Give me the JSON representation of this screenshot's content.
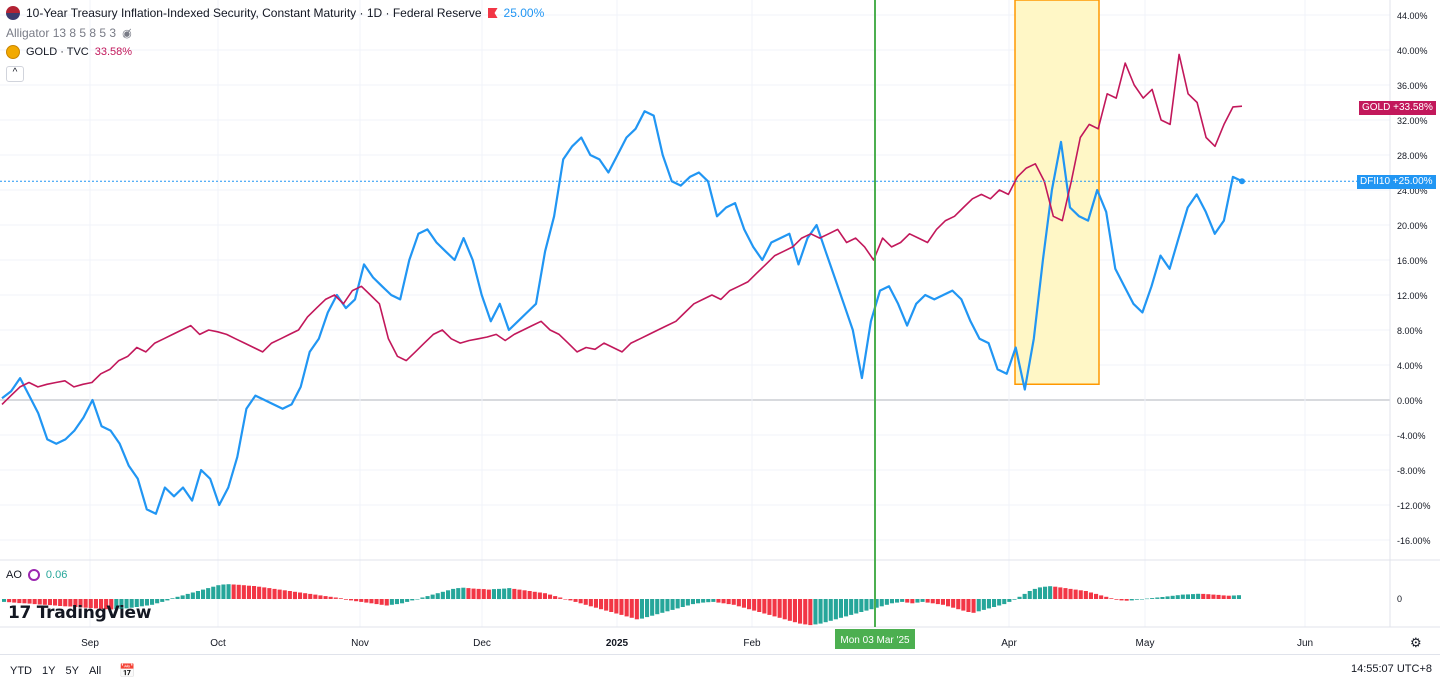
{
  "legend": {
    "main_title": "10-Year Treasury Inflation-Indexed Security, Constant Maturity · 1D · Federal Reserve",
    "main_value": "25.00%",
    "alligator": "Alligator 13 8 5 8 5 3",
    "gold_title": "GOLD · TVC",
    "gold_value": "33.58%",
    "collapse": "^"
  },
  "ao": {
    "label": "AO",
    "value": "0.06"
  },
  "logo": "TradingView",
  "price_tags": {
    "gold": "+33.58%",
    "gold_name": "GOLD",
    "dfii": "+25.00%",
    "dfii_name": "DFII10"
  },
  "range_buttons": [
    "YTD",
    "1Y",
    "5Y",
    "All"
  ],
  "clock": "14:55:07 UTC+8",
  "crosshair_label": "Mon 03 Mar '25",
  "colors": {
    "dfii": "#2196f3",
    "gold": "#c2185b",
    "up": "#26a69a",
    "down": "#f23645",
    "crosshair": "#4caf50",
    "box_fill": "#fff7c6",
    "box_border": "#ff9800"
  },
  "icons": [
    "us-flag-icon",
    "gold-icon",
    "eye-hidden-icon",
    "flag-icon",
    "ao-indicator-icon",
    "settings-gear-icon",
    "date-range-icon"
  ],
  "chart_data": {
    "type": "line",
    "title": "10-Year Treasury Inflation-Indexed Security, Constant Maturity · 1D · Federal Reserve",
    "ylabel": "",
    "ylim": [
      -18,
      44
    ],
    "y_ticks": [
      "44.00%",
      "40.00%",
      "36.00%",
      "32.00%",
      "28.00%",
      "24.00%",
      "20.00%",
      "16.00%",
      "12.00%",
      "8.00%",
      "4.00%",
      "0.00%",
      "-4.00%",
      "-8.00%",
      "-12.00%",
      "-16.00%"
    ],
    "x_ticks": [
      "Sep",
      "Oct",
      "Nov",
      "Dec",
      "2025",
      "Feb",
      "Apr",
      "May",
      "Jun"
    ],
    "series": [
      {
        "name": "DFII10",
        "values": [
          0.2,
          1.0,
          2.5,
          0.5,
          -1.5,
          -4.5,
          -5.0,
          -4.5,
          -3.5,
          -2.0,
          0.0,
          -3.0,
          -3.5,
          -5.0,
          -7.5,
          -9.0,
          -12.5,
          -13.0,
          -10.0,
          -11.0,
          -10.0,
          -11.5,
          -8.0,
          -9.0,
          -12.0,
          -10.0,
          -6.5,
          -1.0,
          0.5,
          0.0,
          -0.5,
          -1.0,
          -0.5,
          1.5,
          5.5,
          7.0,
          10.0,
          12.0,
          10.5,
          11.5,
          15.5,
          14.0,
          13.0,
          12.0,
          11.5,
          16.0,
          19.0,
          19.5,
          18.0,
          17.0,
          16.0,
          18.5,
          16.0,
          12.0,
          9.0,
          11.0,
          8.0,
          9.0,
          10.0,
          11.0,
          17.0,
          21.0,
          27.5,
          29.0,
          30.0,
          28.0,
          27.5,
          26.0,
          28.0,
          30.0,
          31.0,
          33.0,
          32.5,
          28.0,
          25.0,
          24.5,
          25.5,
          26.0,
          25.0,
          21.0,
          22.0,
          22.5,
          19.5,
          17.5,
          16.0,
          18.0,
          18.5,
          19.0,
          15.5,
          18.5,
          20.0,
          17.0,
          14.0,
          11.0,
          8.0,
          2.5,
          9.0,
          12.5,
          13.0,
          11.0,
          8.5,
          11.0,
          12.0,
          11.5,
          12.0,
          12.5,
          11.5,
          9.0,
          7.0,
          6.5,
          3.5,
          3.0,
          6.0,
          1.2,
          7.0,
          16.0,
          24.0,
          29.5,
          22.0,
          21.0,
          20.5,
          24.0,
          21.5,
          15.0,
          13.0,
          11.0,
          10.0,
          13.0,
          16.5,
          15.0,
          18.5,
          22.0,
          23.5,
          21.5,
          19.0,
          20.5,
          25.5,
          25.0
        ]
      },
      {
        "name": "GOLD",
        "values": [
          -0.5,
          0.5,
          1.5,
          2.0,
          1.5,
          1.8,
          2.0,
          2.2,
          1.5,
          1.8,
          2.0,
          3.0,
          3.5,
          4.5,
          5.0,
          6.0,
          5.5,
          6.5,
          7.0,
          7.5,
          8.0,
          8.5,
          7.5,
          8.0,
          7.8,
          7.5,
          7.0,
          6.5,
          6.0,
          5.5,
          6.5,
          7.0,
          7.5,
          8.0,
          9.5,
          10.5,
          11.5,
          12.0,
          11.0,
          12.5,
          13.0,
          12.0,
          11.0,
          7.0,
          5.0,
          4.5,
          5.5,
          6.5,
          7.5,
          8.0,
          7.0,
          6.5,
          6.8,
          7.0,
          7.2,
          7.5,
          6.8,
          7.5,
          8.0,
          8.5,
          9.0,
          8.0,
          7.5,
          6.5,
          5.5,
          6.0,
          5.8,
          6.5,
          6.0,
          5.5,
          6.5,
          7.0,
          7.5,
          8.0,
          8.5,
          9.0,
          10.0,
          11.0,
          11.5,
          12.0,
          11.5,
          12.5,
          13.0,
          13.5,
          14.5,
          15.5,
          16.5,
          17.0,
          17.5,
          18.5,
          19.0,
          18.5,
          19.0,
          19.5,
          18.0,
          18.5,
          17.5,
          16.0,
          18.5,
          17.5,
          18.0,
          19.0,
          18.5,
          18.0,
          19.5,
          20.5,
          21.0,
          22.0,
          23.0,
          23.5,
          23.0,
          24.0,
          23.5,
          25.5,
          26.5,
          27.0,
          25.0,
          21.0,
          20.5,
          25.0,
          30.0,
          31.5,
          31.0,
          35.0,
          34.5,
          38.5,
          36.0,
          34.5,
          35.5,
          32.0,
          31.5,
          39.5,
          35.0,
          34.0,
          30.0,
          29.0,
          31.5,
          33.5,
          33.58
        ]
      }
    ],
    "shaded_region": {
      "from_label": "Apr",
      "to_label": "mid-Apr",
      "y_range": [
        1.8,
        45
      ]
    },
    "indicator": {
      "name": "AO",
      "value": 0.06,
      "values": [
        -2.0,
        -2.2,
        -2.5,
        -2.8,
        -3.0,
        -3.2,
        -3.5,
        -3.8,
        -4.0,
        -4.2,
        -4.5,
        -4.8,
        -5.0,
        -5.2,
        -5.5,
        -5.8,
        -6.0,
        -6.2,
        -6.5,
        -6.8,
        -7.0,
        -7.2,
        -7.0,
        -6.8,
        -6.5,
        -6.0,
        -5.5,
        -5.0,
        -4.5,
        -4.0,
        -3.0,
        -2.0,
        -1.0,
        0.5,
        1.5,
        2.5,
        3.5,
        4.5,
        5.5,
        6.5,
        7.5,
        8.5,
        9.5,
        10.0,
        10.2,
        10.0,
        9.8,
        9.5,
        9.2,
        9.0,
        8.5,
        8.0,
        7.5,
        7.0,
        6.5,
        6.0,
        5.5,
        5.0,
        4.5,
        4.0,
        3.5,
        3.0,
        2.5,
        2.0,
        1.5,
        1.0,
        0.5,
        -0.5,
        -1.0,
        -1.5,
        -2.0,
        -2.5,
        -3.0,
        -3.5,
        -4.0,
        -4.5,
        -4.0,
        -3.5,
        -3.0,
        -2.0,
        -1.0,
        0.0,
        1.0,
        2.0,
        3.0,
        4.0,
        5.0,
        6.0,
        7.0,
        7.5,
        7.8,
        7.5,
        7.2,
        7.0,
        6.8,
        6.5,
        6.8,
        7.0,
        7.2,
        7.5,
        7.0,
        6.5,
        6.0,
        5.5,
        5.0,
        4.5,
        4.0,
        3.0,
        2.0,
        1.0,
        0.0,
        -1.0,
        -2.0,
        -3.0,
        -4.0,
        -5.0,
        -6.0,
        -7.0,
        -8.0,
        -9.0,
        -10.0,
        -11.0,
        -12.0,
        -13.0,
        -14.0,
        -13.5,
        -12.5,
        -11.5,
        -10.5,
        -9.5,
        -8.5,
        -7.5,
        -6.5,
        -5.5,
        -4.5,
        -3.5,
        -3.0,
        -2.5,
        -2.2,
        -2.0,
        -2.5,
        -3.0,
        -3.5,
        -4.0,
        -5.0,
        -6.0,
        -7.0,
        -8.0,
        -9.0,
        -10.0,
        -11.0,
        -12.0,
        -13.0,
        -14.0,
        -15.0,
        -16.0,
        -17.0,
        -17.5,
        -18.0,
        -17.5,
        -17.0,
        -16.0,
        -15.0,
        -14.0,
        -13.0,
        -12.0,
        -11.0,
        -10.0,
        -9.0,
        -8.0,
        -7.0,
        -6.0,
        -5.0,
        -4.0,
        -3.0,
        -2.5,
        -2.0,
        -2.5,
        -3.0,
        -2.5,
        -2.0,
        -2.5,
        -3.0,
        -3.5,
        -4.0,
        -5.0,
        -6.0,
        -7.0,
        -8.0,
        -9.0,
        -9.5,
        -8.5,
        -7.5,
        -6.5,
        -5.5,
        -4.5,
        -3.5,
        -2.0,
        -0.5,
        1.5,
        3.5,
        5.5,
        7.0,
        8.0,
        8.5,
        8.8,
        8.5,
        8.0,
        7.5,
        7.0,
        6.5,
        6.0,
        5.5,
        4.5,
        3.5,
        2.5,
        1.5,
        0.5,
        -0.5,
        -1.0,
        -1.2,
        -1.0,
        -0.5,
        0.0,
        0.3,
        0.6,
        1.0,
        1.4,
        1.8,
        2.2,
        2.6,
        3.0,
        3.2,
        3.4,
        3.6,
        3.5,
        3.3,
        3.0,
        2.8,
        2.5,
        2.3,
        2.4,
        2.6
      ]
    }
  }
}
